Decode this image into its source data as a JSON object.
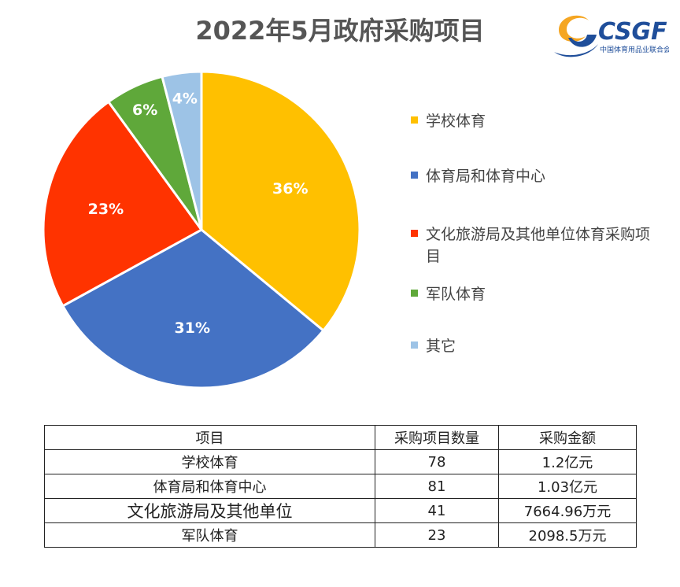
{
  "header": {
    "title": "2022年5月政府采购项目"
  },
  "logo": {
    "text": "CSGF",
    "subtitle": "中国体育用品业联合会",
    "colors": {
      "orange": "#F5A623",
      "navy": "#1F4E9A"
    }
  },
  "chart_data": {
    "type": "pie",
    "title": "2022年5月政府采购项目",
    "slices": [
      {
        "label": "学校体育",
        "value": 36,
        "display": "36%",
        "color": "#FFC000"
      },
      {
        "label": "体育局和体育中心",
        "value": 31,
        "display": "31%",
        "color": "#4472C4"
      },
      {
        "label": "文化旅游局及其他单位体育采购项目",
        "value": 23,
        "display": "23%",
        "color": "#FF3300"
      },
      {
        "label": "军队体育",
        "value": 6,
        "display": "6%",
        "color": "#5FA83A"
      },
      {
        "label": "其它",
        "value": 4,
        "display": "4%",
        "color": "#9DC3E6"
      }
    ],
    "legend_position": "right"
  },
  "table": {
    "headers": [
      "项目",
      "采购项目数量",
      "采购金额"
    ],
    "rows": [
      [
        "学校体育",
        "78",
        "1.2亿元"
      ],
      [
        "体育局和体育中心",
        "81",
        "1.03亿元"
      ],
      [
        "文化旅游局及其他单位",
        "41",
        "7664.96万元"
      ],
      [
        "军队体育",
        "23",
        "2098.5万元"
      ]
    ]
  }
}
